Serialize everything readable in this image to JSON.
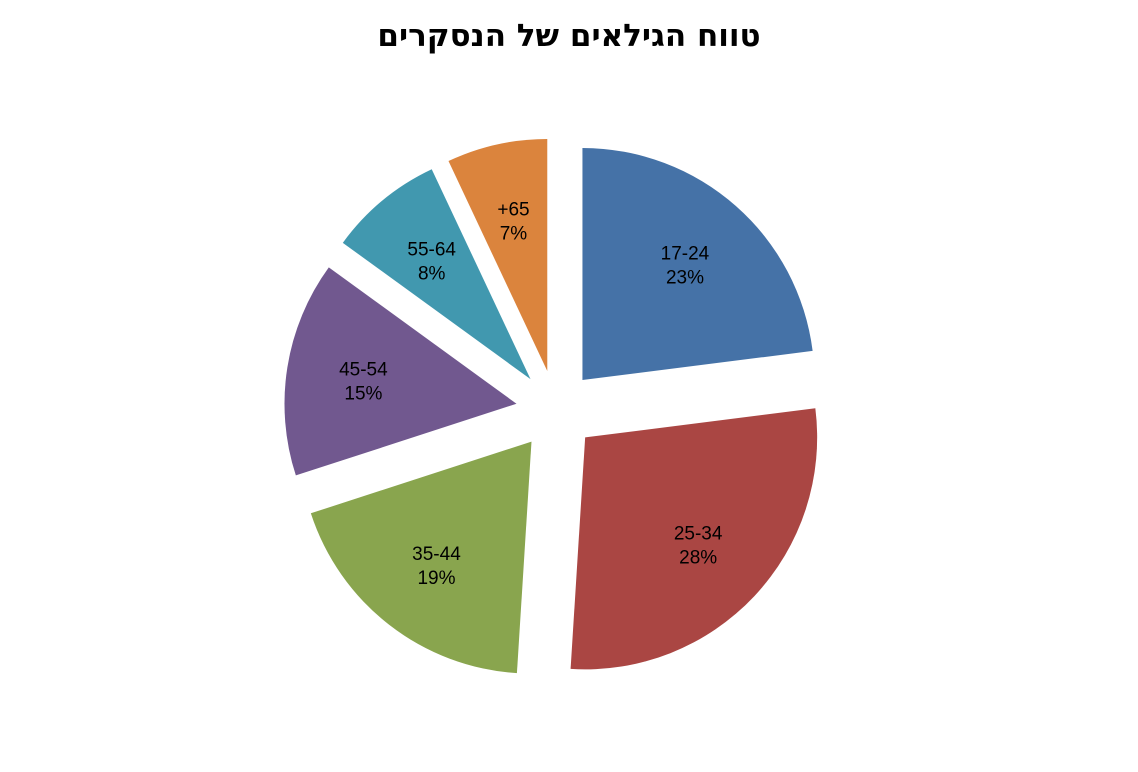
{
  "chart_data": {
    "type": "pie",
    "title": "טווח הגילאים של הנסקרים",
    "exploded": true,
    "slices": [
      {
        "label": "17-24",
        "value": 23,
        "value_label": "23%",
        "color": "#4572a7"
      },
      {
        "label": "25-34",
        "value": 28,
        "value_label": "28%",
        "color": "#aa4643"
      },
      {
        "label": "35-44",
        "value": 19,
        "value_label": "19%",
        "color": "#89a54e"
      },
      {
        "label": "45-54",
        "value": 15,
        "value_label": "15%",
        "color": "#71588f"
      },
      {
        "label": "55-64",
        "value": 8,
        "value_label": "8%",
        "color": "#4198af"
      },
      {
        "label": "+65",
        "value": 7,
        "value_label": "7%",
        "color": "#db843d"
      }
    ]
  }
}
